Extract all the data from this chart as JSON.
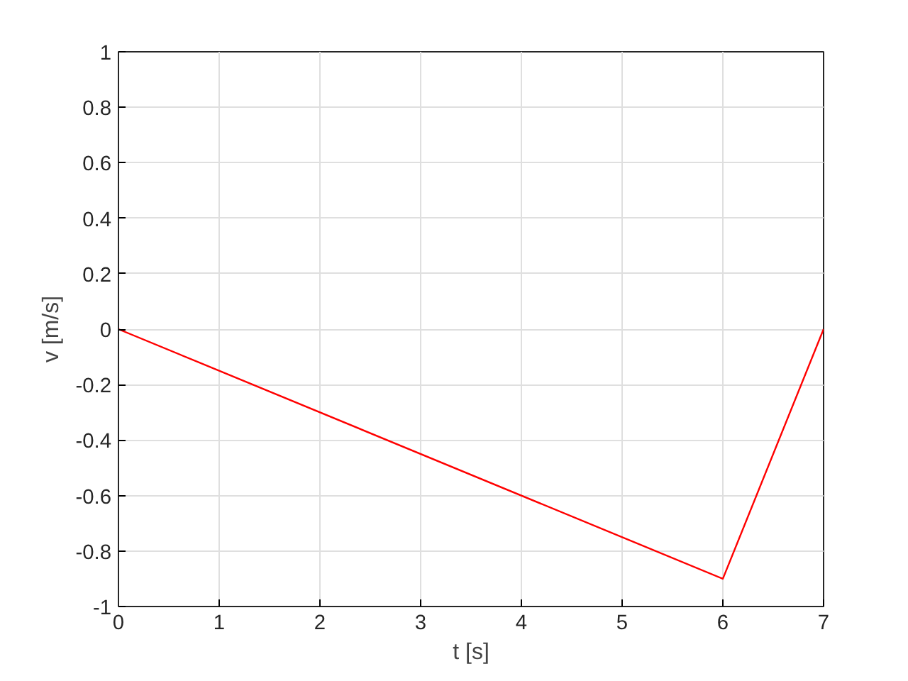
{
  "chart_data": {
    "type": "line",
    "xlabel": "t [s]",
    "ylabel": "v [m/s]",
    "x": [
      0,
      6,
      7
    ],
    "series": [
      {
        "color": "#ff0000",
        "values": [
          0,
          -0.9,
          0
        ]
      }
    ],
    "xlim": [
      0,
      7
    ],
    "ylim": [
      -1,
      1
    ],
    "xticks": [
      0,
      1,
      2,
      3,
      4,
      5,
      6,
      7
    ],
    "yticks": [
      -1,
      -0.8,
      -0.6,
      -0.4,
      -0.2,
      0,
      0.2,
      0.4,
      0.6,
      0.8,
      1
    ],
    "grid": true,
    "line_style": "solid"
  }
}
